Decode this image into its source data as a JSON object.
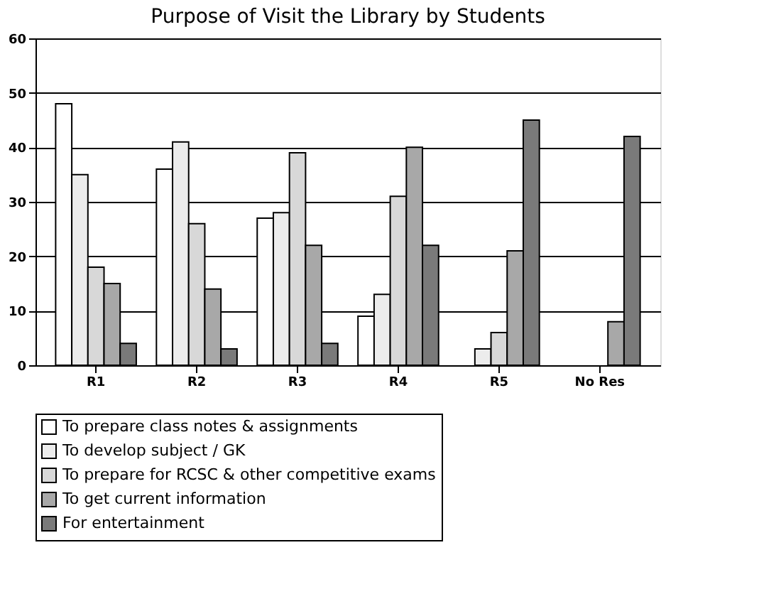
{
  "chart_data": {
    "type": "bar",
    "title": "Purpose of Visit the Library by Students",
    "categories": [
      "R1",
      "R2",
      "R3",
      "R4",
      "R5",
      "No Res"
    ],
    "series": [
      {
        "name": "To prepare class notes & assignments",
        "color": "#ffffff",
        "values": [
          48,
          36,
          27,
          9,
          null,
          null
        ]
      },
      {
        "name": "To develop subject / GK",
        "color": "#ececec",
        "values": [
          35,
          41,
          28,
          13,
          3,
          null
        ]
      },
      {
        "name": "To prepare for RCSC & other competitive exams",
        "color": "#d8d8d8",
        "values": [
          18,
          26,
          39,
          31,
          6,
          null
        ]
      },
      {
        "name": "To get current information",
        "color": "#a8a8a8",
        "values": [
          15,
          14,
          22,
          40,
          21,
          8
        ]
      },
      {
        "name": "For entertainment",
        "color": "#7a7a7a",
        "values": [
          4,
          3,
          4,
          22,
          45,
          42
        ]
      }
    ],
    "ylim": [
      0,
      60
    ],
    "yticks": [
      0,
      10,
      20,
      30,
      40,
      50,
      60
    ],
    "grid": "y",
    "legend": "bottom"
  }
}
